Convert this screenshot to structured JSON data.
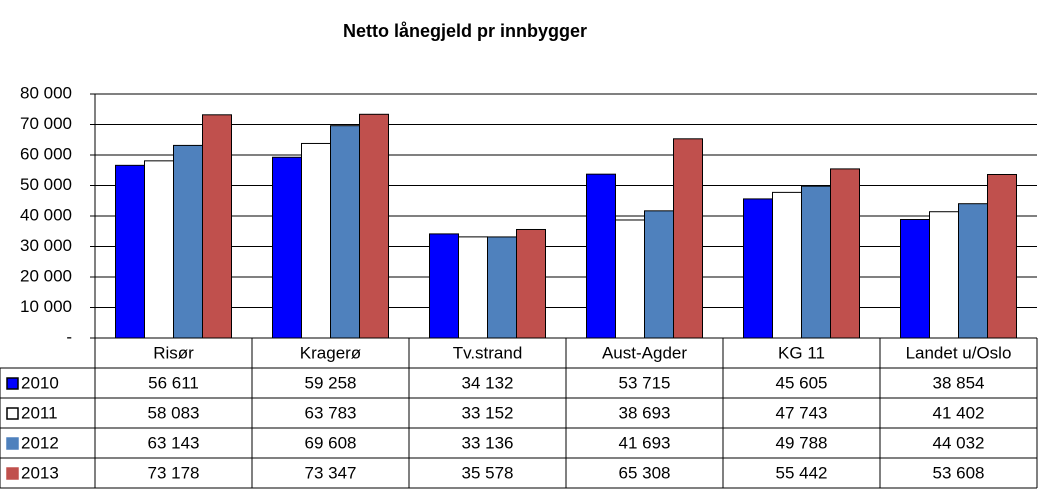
{
  "chart_data": {
    "type": "bar",
    "title": "Netto lånegjeld pr innbygger",
    "categories": [
      "Risør",
      "Kragerø",
      "Tv.strand",
      "Aust-Agder",
      "KG 11",
      "Landet u/Oslo"
    ],
    "series": [
      {
        "name": "2010",
        "color": "#0000ff",
        "values": [
          56611,
          59258,
          34132,
          53715,
          45605,
          38854
        ],
        "value_labels": [
          "56 611",
          "59 258",
          "34 132",
          "53 715",
          "45 605",
          "38 854"
        ]
      },
      {
        "name": "2011",
        "color": "#ffffff",
        "values": [
          58083,
          63783,
          33152,
          38693,
          47743,
          41402
        ],
        "value_labels": [
          "58 083",
          "63 783",
          "33 152",
          "38 693",
          "47 743",
          "41 402"
        ]
      },
      {
        "name": "2012",
        "color": "#4f81bd",
        "values": [
          63143,
          69608,
          33136,
          41693,
          49788,
          44032
        ],
        "value_labels": [
          "63 143",
          "69 608",
          "33 136",
          "41 693",
          "49 788",
          "44 032"
        ]
      },
      {
        "name": "2013",
        "color": "#c0504d",
        "values": [
          73178,
          73347,
          35578,
          65308,
          55442,
          53608
        ],
        "value_labels": [
          "73 178",
          "73 347",
          "35 578",
          "65 308",
          "55 442",
          "53 608"
        ]
      }
    ],
    "ylim": [
      0,
      80000
    ],
    "yticks": [
      {
        "value": 0,
        "label": "-"
      },
      {
        "value": 10000,
        "label": "10 000"
      },
      {
        "value": 20000,
        "label": "20 000"
      },
      {
        "value": 30000,
        "label": "30 000"
      },
      {
        "value": 40000,
        "label": "40 000"
      },
      {
        "value": 50000,
        "label": "50 000"
      },
      {
        "value": 60000,
        "label": "60 000"
      },
      {
        "value": 70000,
        "label": "70 000"
      },
      {
        "value": 80000,
        "label": "80 000"
      }
    ],
    "grid": true
  }
}
